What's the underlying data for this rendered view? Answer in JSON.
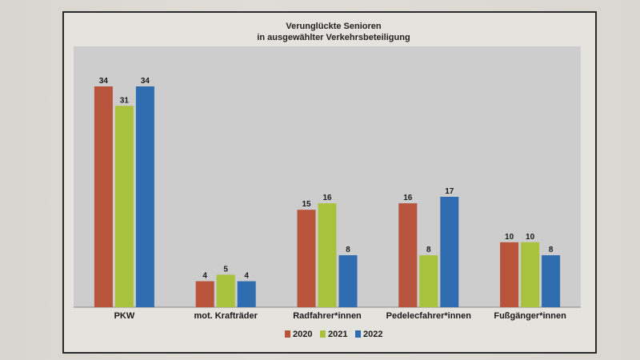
{
  "chart_data": {
    "type": "bar",
    "title": "Verunglückte Senioren",
    "subtitle": "in ausgewählter Verkehrsbeteiligung",
    "categories": [
      "PKW",
      "mot. Krafträder",
      "Radfahrer*innen",
      "Pedelecfahrer*innen",
      "Fußgänger*innen"
    ],
    "series": [
      {
        "name": "2020",
        "color": "#b8533c",
        "values": [
          34,
          4,
          15,
          16,
          10
        ]
      },
      {
        "name": "2021",
        "color": "#a9c23e",
        "values": [
          31,
          5,
          16,
          8,
          10
        ]
      },
      {
        "name": "2022",
        "color": "#2f6db0",
        "values": [
          34,
          4,
          8,
          17,
          8
        ]
      }
    ],
    "ylim": [
      0,
      36
    ],
    "grid": false,
    "legend_position": "bottom",
    "plot_background": "#cdcdcd"
  }
}
